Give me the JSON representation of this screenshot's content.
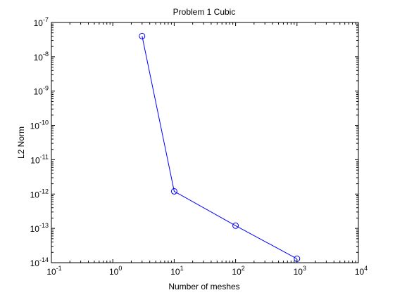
{
  "chart_data": {
    "type": "line",
    "title": "Problem 1 Cubic",
    "xlabel": "Number of meshes",
    "ylabel": "L2 Norm",
    "xscale": "log",
    "yscale": "log",
    "xlim": [
      0.1,
      10000
    ],
    "ylim": [
      1e-14,
      1e-07
    ],
    "grid": false,
    "legend": "none",
    "x_ticks": [
      {
        "value": 0.1,
        "base": "10",
        "exp": "-1"
      },
      {
        "value": 1,
        "base": "10",
        "exp": "0"
      },
      {
        "value": 10,
        "base": "10",
        "exp": "1"
      },
      {
        "value": 100,
        "base": "10",
        "exp": "2"
      },
      {
        "value": 1000,
        "base": "10",
        "exp": "3"
      },
      {
        "value": 10000,
        "base": "10",
        "exp": "4"
      }
    ],
    "y_ticks": [
      {
        "value": 1e-14,
        "base": "10",
        "exp": "-14"
      },
      {
        "value": 1e-13,
        "base": "10",
        "exp": "-13"
      },
      {
        "value": 1e-12,
        "base": "10",
        "exp": "-12"
      },
      {
        "value": 1e-11,
        "base": "10",
        "exp": "-11"
      },
      {
        "value": 1e-10,
        "base": "10",
        "exp": "-10"
      },
      {
        "value": 1e-09,
        "base": "10",
        "exp": "-9"
      },
      {
        "value": 1e-08,
        "base": "10",
        "exp": "-8"
      },
      {
        "value": 1e-07,
        "base": "10",
        "exp": "-7"
      }
    ],
    "series": [
      {
        "color": "#0000ff",
        "marker": "circle",
        "x": [
          3,
          10,
          100,
          1000
        ],
        "y": [
          4e-08,
          1.2e-12,
          1.2e-13,
          1.3e-14
        ]
      }
    ]
  }
}
